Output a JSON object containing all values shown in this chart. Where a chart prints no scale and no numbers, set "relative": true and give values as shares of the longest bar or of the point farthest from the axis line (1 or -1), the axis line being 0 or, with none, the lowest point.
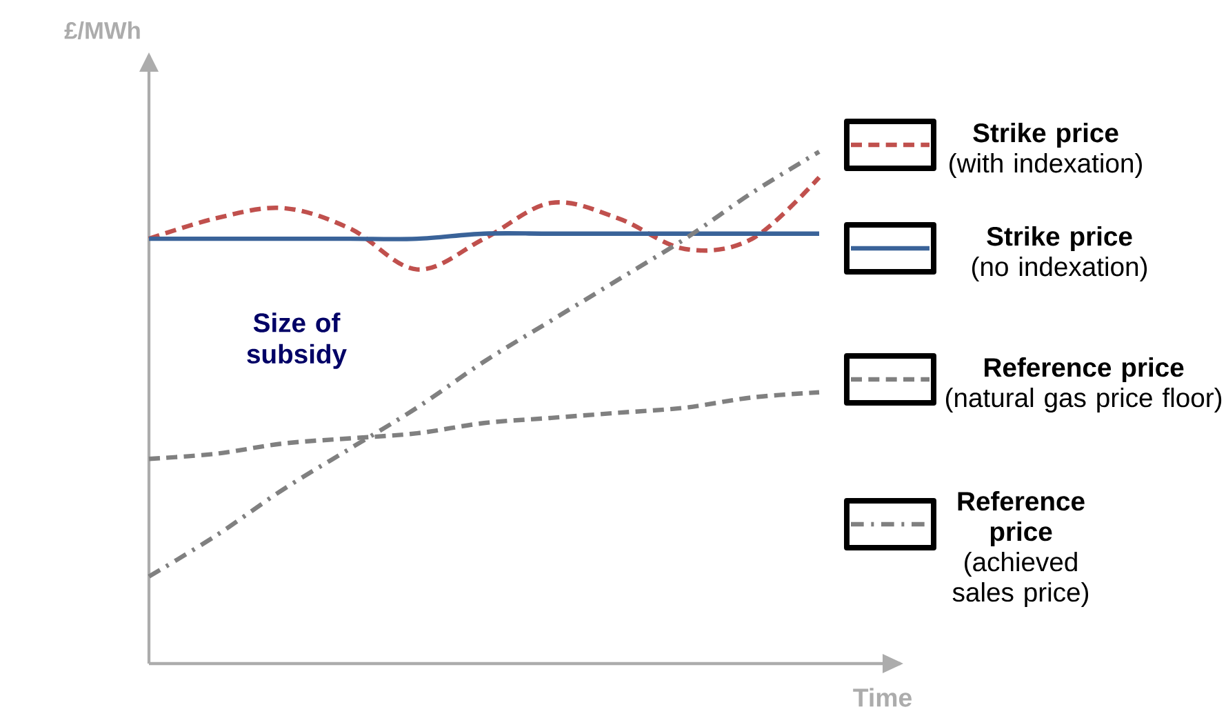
{
  "chart_data": {
    "type": "line",
    "relative": true,
    "xlabel": "Time",
    "ylabel": "£/MWh",
    "legend": "right",
    "categories": [
      null,
      null,
      null,
      null,
      null,
      null,
      null,
      null,
      null,
      null,
      null
    ],
    "series": [
      {
        "name": "**Strike price** (with indexation)",
        "color": "#c0504d",
        "line_style": "dashed",
        "values": [
          0.83,
          0.87,
          0.89,
          0.85,
          0.77,
          0.83,
          0.9,
          0.87,
          0.81,
          0.83,
          0.95
        ]
      },
      {
        "name": "**Strike price** (no indexation)",
        "color": "#3a6399",
        "line_style": "solid",
        "values": [
          0.83,
          0.83,
          0.83,
          0.83,
          0.83,
          0.84,
          0.84,
          0.84,
          0.84,
          0.84,
          0.84
        ]
      },
      {
        "name": "**Reference price** (natural gas price floor)",
        "color": "#808080",
        "line_style": "dashed",
        "values": [
          0.4,
          0.41,
          0.43,
          0.44,
          0.45,
          0.47,
          0.48,
          0.49,
          0.5,
          0.52,
          0.53
        ]
      },
      {
        "name": "**Reference price** (achieved sales price)",
        "color": "#808080",
        "line_style": "dashdot",
        "values": [
          0.17,
          0.25,
          0.34,
          0.42,
          0.5,
          0.59,
          0.67,
          0.75,
          0.83,
          0.92,
          1.0
        ]
      }
    ],
    "annotations": [
      "Size of subsidy"
    ]
  }
}
